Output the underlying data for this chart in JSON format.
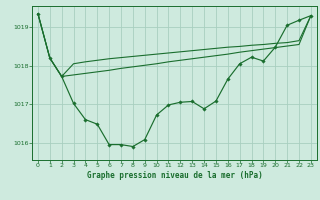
{
  "title": "Graphe pression niveau de la mer (hPa)",
  "background_color": "#ceeade",
  "grid_color": "#a8cfc0",
  "line_color": "#1a6e2e",
  "xlim": [
    -0.5,
    23.5
  ],
  "ylim": [
    1015.55,
    1019.55
  ],
  "yticks": [
    1016,
    1017,
    1018,
    1019
  ],
  "xtick_labels": [
    "0",
    "1",
    "2",
    "3",
    "4",
    "5",
    "6",
    "7",
    "8",
    "9",
    "10",
    "11",
    "12",
    "13",
    "14",
    "15",
    "16",
    "17",
    "18",
    "19",
    "20",
    "21",
    "22",
    "23"
  ],
  "xtick_positions": [
    0,
    1,
    2,
    3,
    4,
    5,
    6,
    7,
    8,
    9,
    10,
    11,
    12,
    13,
    14,
    15,
    16,
    17,
    18,
    19,
    20,
    21,
    22,
    23
  ],
  "main_line": [
    1019.35,
    1018.2,
    1017.72,
    1017.02,
    1016.6,
    1016.48,
    1015.95,
    1015.95,
    1015.9,
    1016.08,
    1016.72,
    1016.98,
    1017.05,
    1017.07,
    1016.88,
    1017.08,
    1017.65,
    1018.05,
    1018.22,
    1018.12,
    1018.48,
    1019.05,
    1019.18,
    1019.3
  ],
  "line2": [
    1019.35,
    1018.2,
    1017.72,
    1017.76,
    1017.8,
    1017.84,
    1017.88,
    1017.93,
    1017.97,
    1018.01,
    1018.05,
    1018.1,
    1018.14,
    1018.18,
    1018.22,
    1018.26,
    1018.3,
    1018.35,
    1018.39,
    1018.43,
    1018.47,
    1018.51,
    1018.55,
    1019.3
  ],
  "line3": [
    1019.35,
    1018.2,
    1017.72,
    1018.05,
    1018.1,
    1018.14,
    1018.18,
    1018.21,
    1018.24,
    1018.27,
    1018.3,
    1018.33,
    1018.36,
    1018.39,
    1018.42,
    1018.45,
    1018.48,
    1018.5,
    1018.53,
    1018.55,
    1018.58,
    1018.6,
    1018.65,
    1019.3
  ],
  "figsize": [
    3.2,
    2.0
  ],
  "dpi": 100
}
